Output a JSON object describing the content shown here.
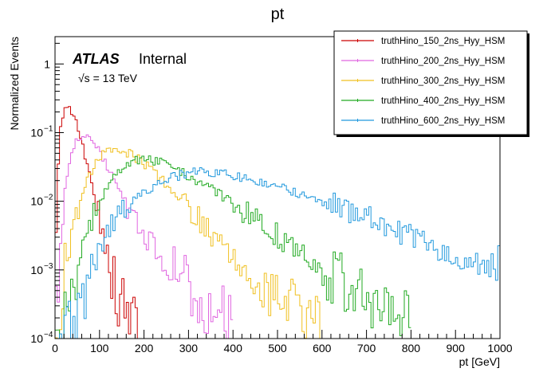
{
  "chart_data": {
    "type": "line",
    "title": "pt",
    "xlabel": "pt [GeV]",
    "ylabel": "Normalized Events",
    "xlim": [
      0,
      1000
    ],
    "ylim": [
      0.0001,
      2.5
    ],
    "yscale": "log",
    "grid": false,
    "x_ticks": [
      "0",
      "100",
      "200",
      "300",
      "400",
      "500",
      "600",
      "700",
      "800",
      "900",
      "1000"
    ],
    "y_ticks": [
      "10^-4",
      "10^-3",
      "10^-2",
      "10^-1",
      "1"
    ],
    "annotations": {
      "atlas": "ATLAS",
      "internal": "Internal",
      "energy": "√s = 13 TeV"
    },
    "legend_position": "top-right",
    "bin_width": 5,
    "series": [
      {
        "name": "truthHino_150_2ns_Hyy_HSM",
        "color": "#cc0000",
        "points": [
          [
            0,
            0.002
          ],
          [
            10,
            0.1
          ],
          [
            20,
            0.23
          ],
          [
            30,
            0.26
          ],
          [
            40,
            0.2
          ],
          [
            55,
            0.1
          ],
          [
            70,
            0.04
          ],
          [
            90,
            0.012
          ],
          [
            105,
            0.004
          ],
          [
            120,
            0.0015
          ],
          [
            135,
            0.0006
          ],
          [
            150,
            0.00028
          ],
          [
            170,
            0.00018
          ],
          [
            190,
            0.00014
          ]
        ]
      },
      {
        "name": "truthHino_200_2ns_Hyy_HSM",
        "color": "#e066e0",
        "points": [
          [
            0,
            0.0001
          ],
          [
            10,
            0.002
          ],
          [
            25,
            0.02
          ],
          [
            45,
            0.07
          ],
          [
            65,
            0.1
          ],
          [
            85,
            0.075
          ],
          [
            110,
            0.04
          ],
          [
            140,
            0.016
          ],
          [
            170,
            0.006
          ],
          [
            200,
            0.0035
          ],
          [
            240,
            0.0014
          ],
          [
            280,
            0.0007
          ],
          [
            320,
            0.0004
          ],
          [
            360,
            0.00025
          ],
          [
            400,
            0.0002
          ]
        ]
      },
      {
        "name": "truthHino_300_2ns_Hyy_HSM",
        "color": "#f0c020",
        "points": [
          [
            0,
            0.0001
          ],
          [
            20,
            0.0008
          ],
          [
            40,
            0.004
          ],
          [
            70,
            0.02
          ],
          [
            100,
            0.045
          ],
          [
            130,
            0.058
          ],
          [
            160,
            0.052
          ],
          [
            190,
            0.04
          ],
          [
            220,
            0.028
          ],
          [
            250,
            0.018
          ],
          [
            280,
            0.011
          ],
          [
            310,
            0.007
          ],
          [
            350,
            0.0035
          ],
          [
            400,
            0.0016
          ],
          [
            450,
            0.00075
          ],
          [
            500,
            0.0004
          ],
          [
            550,
            0.00025
          ],
          [
            600,
            0.0002
          ]
        ]
      },
      {
        "name": "truthHino_400_2ns_Hyy_HSM",
        "color": "#22aa22",
        "points": [
          [
            0,
            0.0001
          ],
          [
            40,
            0.0005
          ],
          [
            80,
            0.005
          ],
          [
            120,
            0.018
          ],
          [
            160,
            0.035
          ],
          [
            200,
            0.043
          ],
          [
            240,
            0.036
          ],
          [
            280,
            0.028
          ],
          [
            320,
            0.02
          ],
          [
            360,
            0.014
          ],
          [
            400,
            0.009
          ],
          [
            450,
            0.0055
          ],
          [
            500,
            0.0032
          ],
          [
            550,
            0.0018
          ],
          [
            600,
            0.001
          ],
          [
            650,
            0.0006
          ],
          [
            700,
            0.0004
          ],
          [
            750,
            0.00025
          ],
          [
            800,
            0.0002
          ]
        ]
      },
      {
        "name": "truthHino_600_2ns_Hyy_HSM",
        "color": "#2299dd",
        "points": [
          [
            0,
            0.0001
          ],
          [
            60,
            0.0002
          ],
          [
            100,
            0.002
          ],
          [
            150,
            0.008
          ],
          [
            200,
            0.014
          ],
          [
            250,
            0.021
          ],
          [
            300,
            0.026
          ],
          [
            350,
            0.027
          ],
          [
            400,
            0.024
          ],
          [
            450,
            0.02
          ],
          [
            500,
            0.017
          ],
          [
            550,
            0.013
          ],
          [
            600,
            0.01
          ],
          [
            650,
            0.0078
          ],
          [
            700,
            0.0058
          ],
          [
            750,
            0.0042
          ],
          [
            800,
            0.003
          ],
          [
            850,
            0.0022
          ],
          [
            900,
            0.0017
          ],
          [
            950,
            0.0012
          ],
          [
            1000,
            0.0009
          ]
        ]
      }
    ]
  }
}
